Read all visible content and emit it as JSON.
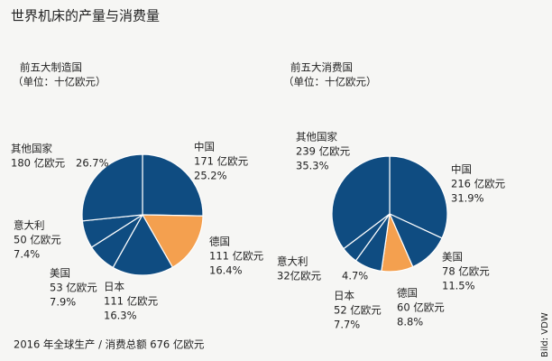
{
  "title": "世界机床的产量与消费量",
  "footer": "2016 年全球生产 / 消费总额 676 亿欧元",
  "credit": "Bild: VDW",
  "chart_data": [
    {
      "type": "pie",
      "title": "前五大制造国",
      "subtitle": "（单位：十亿欧元）",
      "categories": [
        "中国",
        "德国",
        "日本",
        "美国",
        "意大利",
        "其他国家"
      ],
      "values": [
        171,
        111,
        111,
        53,
        50,
        180
      ],
      "value_labels": [
        "171 亿欧元",
        "111 亿欧元",
        "111 亿欧元",
        "53 亿欧元",
        "50 亿欧元",
        "180 亿欧元"
      ],
      "percents": [
        25.2,
        16.4,
        16.3,
        7.9,
        7.4,
        26.7
      ],
      "percent_labels": [
        "25.2%",
        "16.4%",
        "16.3%",
        "7.9%",
        "7.4%",
        "26.7%"
      ],
      "colors": [
        "#0f4c81",
        "#f4a04f",
        "#0f4c81",
        "#0f4c81",
        "#0f4c81",
        "#0f4c81"
      ]
    },
    {
      "type": "pie",
      "title": "前五大消费国",
      "subtitle": "（单位：十亿欧元）",
      "categories": [
        "中国",
        "美国",
        "德国",
        "日本",
        "意大利",
        "其他国家"
      ],
      "values": [
        216,
        78,
        60,
        52,
        32,
        239
      ],
      "value_labels": [
        "216 亿欧元",
        "78 亿欧元",
        "60 亿欧元",
        "52 亿欧元",
        "32亿欧元",
        "239 亿欧元"
      ],
      "percents": [
        31.9,
        11.5,
        8.8,
        7.7,
        4.7,
        35.3
      ],
      "percent_labels": [
        "31.9%",
        "11.5%",
        "8.8%",
        "7.7%",
        "4.7%",
        "35.3%"
      ],
      "colors": [
        "#0f4c81",
        "#0f4c81",
        "#f4a04f",
        "#0f4c81",
        "#0f4c81",
        "#0f4c81"
      ]
    }
  ]
}
